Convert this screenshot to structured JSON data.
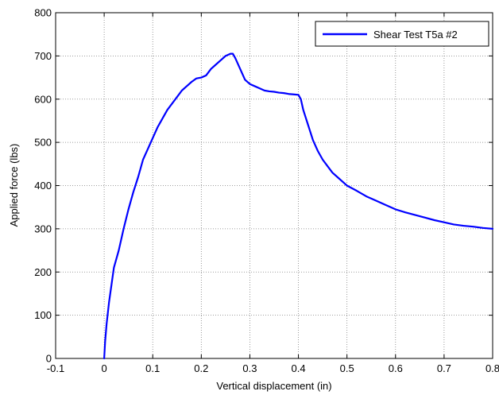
{
  "chart_data": {
    "type": "line",
    "title": "",
    "xlabel": "Vertical displacement (in)",
    "ylabel": "Applied force (lbs)",
    "xlim": [
      -0.1,
      0.8
    ],
    "ylim": [
      0,
      800
    ],
    "xticks": [
      -0.1,
      0,
      0.1,
      0.2,
      0.3,
      0.4,
      0.5,
      0.6,
      0.7,
      0.8
    ],
    "xtick_labels": [
      "-0.1",
      "0",
      "0.1",
      "0.2",
      "0.3",
      "0.4",
      "0.5",
      "0.6",
      "0.7",
      "0.8"
    ],
    "yticks": [
      0,
      100,
      200,
      300,
      400,
      500,
      600,
      700,
      800
    ],
    "ytick_labels": [
      "0",
      "100",
      "200",
      "300",
      "400",
      "500",
      "600",
      "700",
      "800"
    ],
    "grid": true,
    "legend_position": "top-right",
    "series": [
      {
        "name": "Shear Test T5a #2",
        "color": "#0000ff",
        "x": [
          0,
          0.002,
          0.005,
          0.01,
          0.015,
          0.02,
          0.03,
          0.04,
          0.05,
          0.06,
          0.07,
          0.08,
          0.09,
          0.1,
          0.11,
          0.12,
          0.13,
          0.14,
          0.15,
          0.16,
          0.17,
          0.18,
          0.19,
          0.2,
          0.21,
          0.22,
          0.23,
          0.24,
          0.25,
          0.26,
          0.265,
          0.27,
          0.28,
          0.29,
          0.3,
          0.31,
          0.32,
          0.33,
          0.34,
          0.35,
          0.36,
          0.37,
          0.38,
          0.39,
          0.4,
          0.405,
          0.41,
          0.42,
          0.43,
          0.44,
          0.45,
          0.46,
          0.47,
          0.48,
          0.49,
          0.5,
          0.52,
          0.54,
          0.56,
          0.58,
          0.6,
          0.62,
          0.64,
          0.66,
          0.68,
          0.7,
          0.72,
          0.74,
          0.76,
          0.78,
          0.8
        ],
        "y": [
          0,
          40,
          80,
          130,
          170,
          210,
          250,
          300,
          345,
          385,
          420,
          460,
          485,
          510,
          535,
          555,
          575,
          590,
          605,
          620,
          630,
          640,
          648,
          650,
          655,
          670,
          680,
          690,
          700,
          705,
          705,
          695,
          670,
          645,
          635,
          630,
          625,
          620,
          618,
          617,
          615,
          614,
          612,
          611,
          610,
          600,
          575,
          540,
          505,
          480,
          460,
          445,
          430,
          420,
          410,
          400,
          388,
          375,
          365,
          355,
          345,
          338,
          332,
          326,
          320,
          315,
          310,
          307,
          305,
          302,
          300
        ]
      }
    ]
  }
}
